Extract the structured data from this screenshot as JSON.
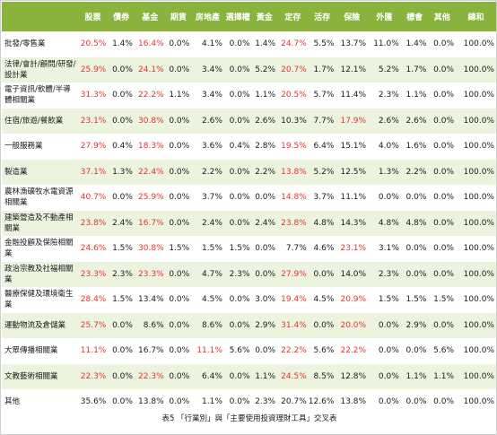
{
  "table": {
    "headers": [
      "",
      "股票",
      "債券",
      "基金",
      "期貨",
      "房地產",
      "選擇權",
      "黃金",
      "定存",
      "活存",
      "保險",
      "外匯",
      "標會",
      "其他",
      "總和"
    ],
    "rows": [
      {
        "label": "批發/零售業",
        "cells": [
          "20.5%",
          "1.4%",
          "16.4%",
          "0.0%",
          "4.1%",
          "0.0%",
          "1.4%",
          "24.7%",
          "5.5%",
          "13.7%",
          "11.0%",
          "1.4%",
          "0.0%",
          "100.0%"
        ],
        "highlight": [
          0,
          2,
          7
        ]
      },
      {
        "label": "法律/會計/顧問/研發/設計業",
        "cells": [
          "25.9%",
          "0.0%",
          "24.1%",
          "0.0%",
          "3.4%",
          "0.0%",
          "5.2%",
          "20.7%",
          "1.7%",
          "12.1%",
          "5.2%",
          "1.7%",
          "0.0%",
          "100.0%"
        ],
        "highlight": [
          0,
          2,
          7
        ]
      },
      {
        "label": "電子資訊/軟體/半導體相關業",
        "cells": [
          "31.3%",
          "0.0%",
          "22.2%",
          "1.1%",
          "3.4%",
          "0.0%",
          "1.1%",
          "20.5%",
          "5.7%",
          "11.4%",
          "2.3%",
          "1.1%",
          "0.0%",
          "100.0%"
        ],
        "highlight": [
          0,
          2,
          7
        ]
      },
      {
        "label": "住宿/旅遊/餐飲業",
        "cells": [
          "23.1%",
          "0.0%",
          "30.8%",
          "0.0%",
          "2.6%",
          "0.0%",
          "2.6%",
          "10.3%",
          "7.7%",
          "17.9%",
          "2.6%",
          "2.6%",
          "0.0%",
          "100.0%"
        ],
        "highlight": [
          0,
          2,
          9
        ]
      },
      {
        "label": "一般服務業",
        "cells": [
          "27.9%",
          "0.4%",
          "18.3%",
          "0.0%",
          "3.6%",
          "0.4%",
          "2.8%",
          "19.5%",
          "6.4%",
          "15.1%",
          "4.0%",
          "1.6%",
          "0.0%",
          "100.0%"
        ],
        "highlight": [
          0,
          2,
          7
        ]
      },
      {
        "label": "製造業",
        "cells": [
          "37.1%",
          "1.3%",
          "22.4%",
          "0.0%",
          "2.2%",
          "0.0%",
          "2.2%",
          "13.8%",
          "5.2%",
          "12.5%",
          "1.3%",
          "2.2%",
          "0.0%",
          "100.0%"
        ],
        "highlight": [
          0,
          2,
          7
        ]
      },
      {
        "label": "農林漁礦牧水電資源相關業",
        "cells": [
          "40.7%",
          "0.0%",
          "25.9%",
          "0.0%",
          "3.7%",
          "0.0%",
          "0.0%",
          "14.8%",
          "3.7%",
          "11.1%",
          "0.0%",
          "0.0%",
          "0.0%",
          "100.0%"
        ],
        "highlight": [
          0,
          2,
          7
        ]
      },
      {
        "label": "建築營造及不動產相關業",
        "cells": [
          "23.8%",
          "2.4%",
          "16.7%",
          "0.0%",
          "2.4%",
          "0.0%",
          "2.4%",
          "23.8%",
          "4.8%",
          "14.3%",
          "4.8%",
          "4.8%",
          "0.0%",
          "100.0%"
        ],
        "highlight": [
          0,
          2,
          7
        ]
      },
      {
        "label": "金融投顧及保險相關業",
        "cells": [
          "24.6%",
          "1.5%",
          "30.8%",
          "1.5%",
          "1.5%",
          "1.5%",
          "0.0%",
          "7.7%",
          "4.6%",
          "23.1%",
          "3.1%",
          "0.0%",
          "0.0%",
          "100.0%"
        ],
        "highlight": [
          0,
          2,
          9
        ]
      },
      {
        "label": "政治宗教及社福相關業",
        "cells": [
          "23.3%",
          "2.3%",
          "23.3%",
          "0.0%",
          "4.7%",
          "2.3%",
          "0.0%",
          "27.9%",
          "0.0%",
          "14.0%",
          "2.3%",
          "0.0%",
          "0.0%",
          "100.0%"
        ],
        "highlight": [
          0,
          2,
          7
        ]
      },
      {
        "label": "醫療保健及環境衛生業",
        "cells": [
          "28.4%",
          "1.5%",
          "13.4%",
          "0.0%",
          "4.5%",
          "0.0%",
          "3.0%",
          "19.4%",
          "4.5%",
          "20.9%",
          "1.5%",
          "1.5%",
          "1.5%",
          "100.0%"
        ],
        "highlight": [
          0,
          7,
          9
        ]
      },
      {
        "label": "運動物流及倉儲業",
        "cells": [
          "25.7%",
          "0.0%",
          "8.6%",
          "0.0%",
          "8.6%",
          "0.0%",
          "2.9%",
          "31.4%",
          "0.0%",
          "20.0%",
          "0.0%",
          "2.9%",
          "0.0%",
          "100.0%"
        ],
        "highlight": [
          0,
          7,
          9
        ]
      },
      {
        "label": "大眾傳播相關業",
        "cells": [
          "11.1%",
          "0.0%",
          "16.7%",
          "0.0%",
          "11.1%",
          "5.6%",
          "0.0%",
          "22.2%",
          "5.6%",
          "22.2%",
          "0.0%",
          "0.0%",
          "5.6%",
          "100.0%"
        ],
        "highlight": [
          0,
          4,
          7,
          9
        ]
      },
      {
        "label": "文教藝術相關業",
        "cells": [
          "22.3%",
          "0.0%",
          "22.3%",
          "0.0%",
          "6.4%",
          "0.0%",
          "1.1%",
          "24.5%",
          "8.5%",
          "12.8%",
          "0.0%",
          "1.1%",
          "1.1%",
          "100.0%"
        ],
        "highlight": [
          0,
          2,
          7
        ]
      },
      {
        "label": "其他",
        "cells": [
          "35.6%",
          "0.0%",
          "13.8%",
          "0.0%",
          "1.1%",
          "0.0%",
          "2.3%",
          "20.7%",
          "12.6%",
          "13.8%",
          "0.0%",
          "0.0%",
          "0.0%",
          "100.0%"
        ],
        "highlight": []
      }
    ]
  },
  "caption": "表5 「行業別」與「主要使用投資理財工具」交叉表",
  "colors": {
    "header_bg": "#8ab33e",
    "stripe_bg": "#ecf3df",
    "highlight_text": "#e53333"
  }
}
